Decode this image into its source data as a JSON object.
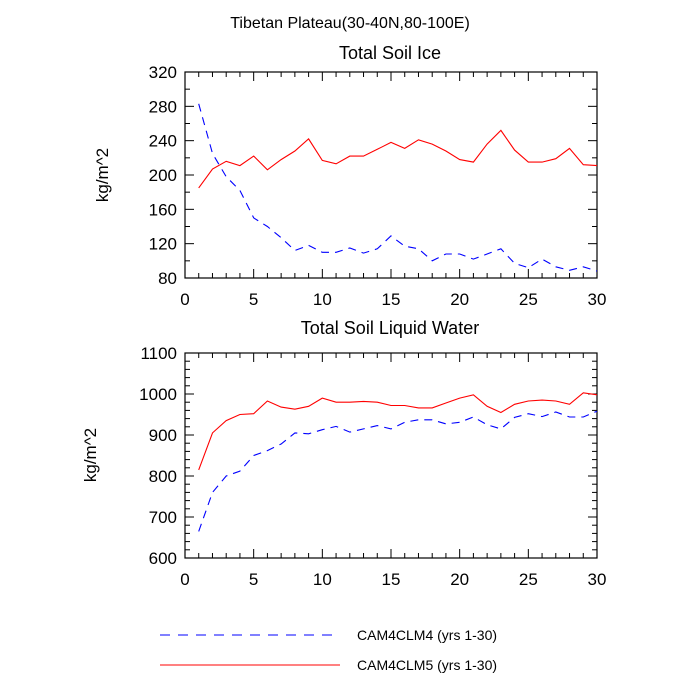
{
  "figure_title": "Tibetan Plateau(30-40N,80-100E)",
  "chart_data": [
    {
      "type": "line",
      "title": "Total Soil Ice",
      "xlabel": "",
      "ylabel": "kg/m^2",
      "xlim": [
        0,
        30
      ],
      "ylim": [
        80,
        320
      ],
      "xticks": [
        0,
        5,
        10,
        15,
        20,
        25,
        30
      ],
      "yticks": [
        80,
        120,
        160,
        200,
        240,
        280,
        320
      ],
      "grid": false,
      "x": [
        1,
        2,
        3,
        4,
        5,
        6,
        7,
        8,
        9,
        10,
        11,
        12,
        13,
        14,
        15,
        16,
        17,
        18,
        19,
        20,
        21,
        22,
        23,
        24,
        25,
        26,
        27,
        28,
        29,
        30
      ],
      "series": [
        {
          "name": "CAM4CLM4 (yrs 1-30)",
          "color": "#0000ff",
          "dash": "dashed",
          "values": [
            283,
            225,
            198,
            182,
            150,
            140,
            127,
            112,
            118,
            110,
            110,
            115,
            109,
            114,
            129,
            117,
            114,
            100,
            108,
            108,
            102,
            108,
            114,
            97,
            92,
            102,
            93,
            89,
            93,
            88
          ]
        },
        {
          "name": "CAM4CLM5 (yrs 1-30)",
          "color": "#ff0000",
          "dash": "solid",
          "values": [
            185,
            207,
            216,
            211,
            222,
            206,
            218,
            228,
            242,
            217,
            213,
            222,
            222,
            230,
            238,
            231,
            241,
            236,
            228,
            218,
            215,
            236,
            252,
            229,
            215,
            215,
            219,
            231,
            212,
            211
          ]
        }
      ]
    },
    {
      "type": "line",
      "title": "Total Soil Liquid Water",
      "xlabel": "",
      "ylabel": "kg/m^2",
      "xlim": [
        0,
        30
      ],
      "ylim": [
        600,
        1100
      ],
      "xticks": [
        0,
        5,
        10,
        15,
        20,
        25,
        30
      ],
      "yticks": [
        600,
        700,
        800,
        900,
        1000,
        1100
      ],
      "grid": false,
      "x": [
        1,
        2,
        3,
        4,
        5,
        6,
        7,
        8,
        9,
        10,
        11,
        12,
        13,
        14,
        15,
        16,
        17,
        18,
        19,
        20,
        21,
        22,
        23,
        24,
        25,
        26,
        27,
        28,
        29,
        30
      ],
      "series": [
        {
          "name": "CAM4CLM4 (yrs 1-30)",
          "color": "#0000ff",
          "dash": "dashed",
          "values": [
            665,
            760,
            800,
            812,
            850,
            862,
            878,
            905,
            903,
            913,
            921,
            907,
            915,
            923,
            915,
            931,
            937,
            937,
            927,
            931,
            944,
            925,
            915,
            943,
            952,
            945,
            956,
            944,
            944,
            958
          ]
        },
        {
          "name": "CAM4CLM5 (yrs 1-30)",
          "color": "#ff0000",
          "dash": "solid",
          "values": [
            815,
            905,
            935,
            950,
            952,
            983,
            968,
            963,
            970,
            990,
            980,
            980,
            982,
            980,
            972,
            972,
            966,
            966,
            978,
            990,
            998,
            970,
            955,
            975,
            983,
            985,
            983,
            975,
            1003,
            998
          ]
        }
      ]
    }
  ],
  "legend": {
    "position": "bottom",
    "entries": [
      {
        "label": "CAM4CLM4 (yrs 1-30)",
        "color": "#0000ff",
        "dash": "dashed"
      },
      {
        "label": "CAM4CLM5 (yrs 1-30)",
        "color": "#ff0000",
        "dash": "solid"
      }
    ]
  }
}
